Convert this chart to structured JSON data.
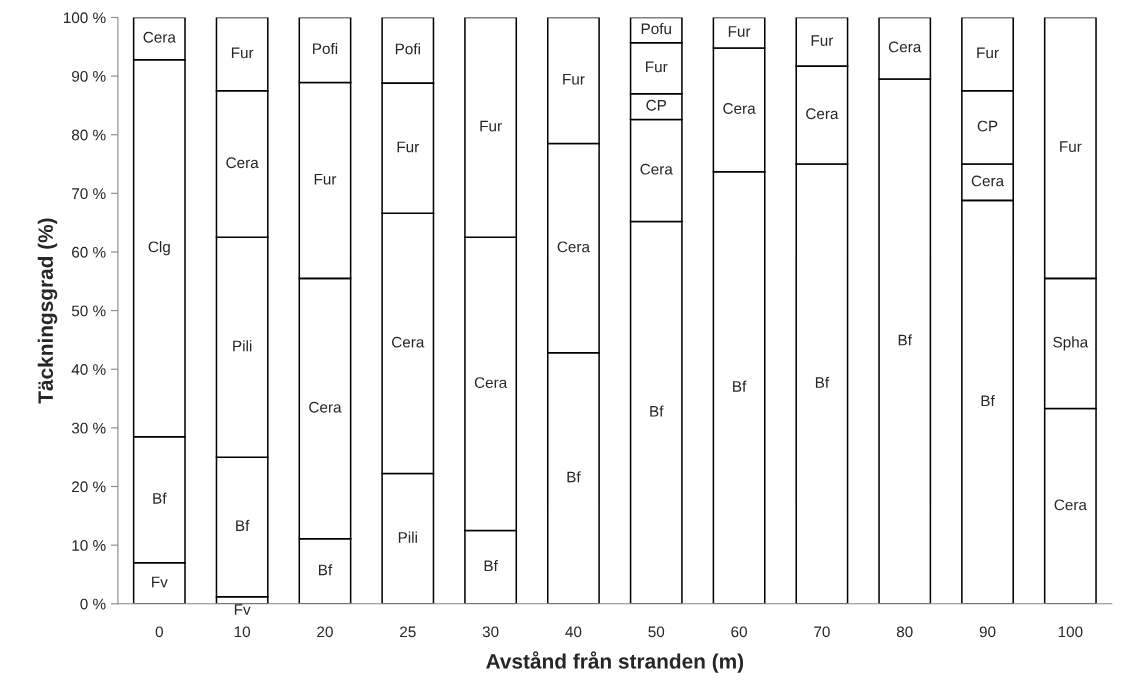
{
  "chart_data": {
    "type": "bar",
    "stacked": true,
    "xlabel": "Avstånd från stranden (m)",
    "ylabel": "Täckningsgrad (%)",
    "categories": [
      "0",
      "10",
      "20",
      "25",
      "30",
      "40",
      "50",
      "60",
      "70",
      "80",
      "90",
      "100"
    ],
    "ylim": [
      0,
      100
    ],
    "yticks": [
      {
        "value": 0,
        "label": "0 %"
      },
      {
        "value": 10,
        "label": "10 %"
      },
      {
        "value": 20,
        "label": "20 %"
      },
      {
        "value": 30,
        "label": "30 %"
      },
      {
        "value": 40,
        "label": "40 %"
      },
      {
        "value": 50,
        "label": "50 %"
      },
      {
        "value": 60,
        "label": "60 %"
      },
      {
        "value": 70,
        "label": "70 %"
      },
      {
        "value": 80,
        "label": "80 %"
      },
      {
        "value": 90,
        "label": "90 %"
      },
      {
        "value": 100,
        "label": "100 %"
      }
    ],
    "grid": false,
    "legend": false,
    "series": [
      {
        "name": "Fv",
        "color": "#ffffff",
        "values": [
          7,
          1.2,
          null,
          null,
          null,
          null,
          null,
          null,
          null,
          null,
          null,
          null
        ]
      },
      {
        "name": "Bf",
        "color": "#ffffff",
        "values": [
          21.5,
          23.8,
          11.1,
          null,
          12.5,
          42.8,
          65.2,
          73.7,
          75,
          89.5,
          68.8,
          null
        ]
      },
      {
        "name": "Clg",
        "color": "#ffffff",
        "values": [
          64.3,
          null,
          null,
          null,
          null,
          null,
          null,
          null,
          null,
          null,
          null,
          null
        ]
      },
      {
        "name": "Pili",
        "color": "#ffffff",
        "values": [
          null,
          37.5,
          null,
          22.2,
          null,
          null,
          null,
          null,
          null,
          null,
          null,
          null
        ]
      },
      {
        "name": "Cera",
        "color": "#ffffff",
        "values": [
          7.2,
          25,
          44.4,
          44.4,
          50,
          35.7,
          17.4,
          21.1,
          16.7,
          10.5,
          6.2,
          33.3
        ]
      },
      {
        "name": "Spha",
        "color": "#ffffff",
        "values": [
          null,
          null,
          null,
          null,
          null,
          null,
          null,
          null,
          null,
          null,
          null,
          22.2
        ]
      },
      {
        "name": "CP",
        "color": "#ffffff",
        "values": [
          null,
          null,
          null,
          null,
          null,
          null,
          4.4,
          null,
          null,
          null,
          12.5,
          null
        ]
      },
      {
        "name": "Fur",
        "color": "#ffffff",
        "values": [
          null,
          12.5,
          33.4,
          22.2,
          37.5,
          21.5,
          8.7,
          5.2,
          8.3,
          null,
          12.5,
          44.5
        ]
      },
      {
        "name": "Pofi",
        "color": "#ffffff",
        "values": [
          null,
          null,
          11.1,
          11.2,
          null,
          null,
          null,
          null,
          null,
          null,
          null,
          null
        ]
      },
      {
        "name": "Pofu",
        "color": "#ffffff",
        "values": [
          null,
          null,
          null,
          null,
          null,
          null,
          4.3,
          null,
          null,
          null,
          null,
          null
        ]
      }
    ]
  }
}
